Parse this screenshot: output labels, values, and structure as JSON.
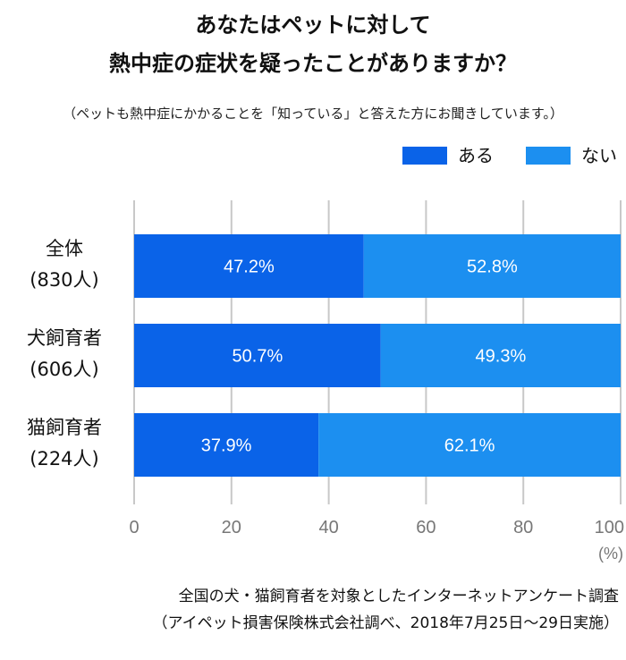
{
  "chart_data": {
    "type": "bar",
    "orientation": "horizontal",
    "stacked": true,
    "title_lines": [
      "あなたはペットに対して",
      "熱中症の症状を疑ったことがありますか？"
    ],
    "subtitle": "（ペットも熱中症にかかることを「知っている」と答えた方にお聞きしています。）",
    "categories": [
      {
        "name": "全体",
        "n": "(830人)"
      },
      {
        "name": "犬飼育者",
        "n": "(606人)"
      },
      {
        "name": "猫飼育者",
        "n": "(224人)"
      }
    ],
    "series": [
      {
        "name": "ある",
        "color": "#0a63e8",
        "values": [
          47.2,
          50.7,
          37.9
        ],
        "labels": [
          "47.2%",
          "50.7%",
          "37.9%"
        ]
      },
      {
        "name": "ない",
        "color": "#1c8ff0",
        "values": [
          52.8,
          49.3,
          62.1
        ],
        "labels": [
          "52.8%",
          "49.3%",
          "62.1%"
        ]
      }
    ],
    "xlim": [
      0,
      100
    ],
    "xticks": [
      "0",
      "20",
      "40",
      "60",
      "80",
      "100"
    ],
    "xunit": "(%)",
    "grid": true,
    "legend_position": "top-right",
    "source_lines": [
      "全国の犬・猫飼育者を対象としたインターネットアンケート調査",
      "（アイペット損害保険株式会社調べ、2018年7月25日〜29日実施）"
    ]
  }
}
